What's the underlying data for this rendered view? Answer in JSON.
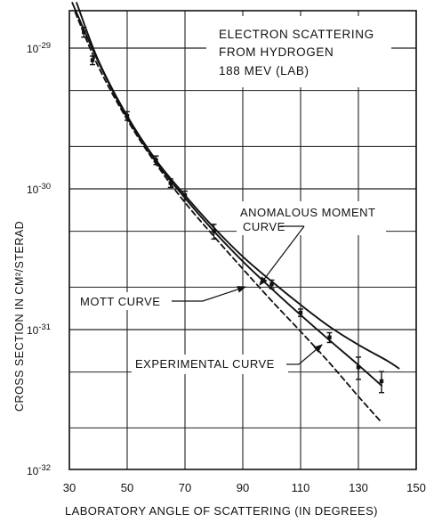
{
  "chart_data": {
    "type": "line",
    "title_lines": [
      "ELECTRON SCATTERING",
      "FROM HYDROGEN",
      "188 MEV (LAB)"
    ],
    "xlabel": "LABORATORY ANGLE OF SCATTERING (IN DEGREES)",
    "ylabel": "CROSS SECTION IN CM²/STERAD",
    "xlim": [
      30,
      150
    ],
    "x_ticks": [
      30,
      50,
      70,
      90,
      110,
      130,
      150
    ],
    "y_log_scale": true,
    "ylim": [
      1e-32,
      2.1e-29
    ],
    "y_ticks": [
      {
        "value": 1e-29,
        "base": "10",
        "exp": "-29"
      },
      {
        "value": 1e-30,
        "base": "10",
        "exp": "-30"
      },
      {
        "value": 1e-31,
        "base": "10",
        "exp": "-31"
      },
      {
        "value": 1e-32,
        "base": "10",
        "exp": "-32"
      }
    ],
    "grid": true,
    "series": [
      {
        "label": "MOTT CURVE",
        "style": "dashed",
        "x": [
          32,
          40,
          50,
          60,
          70,
          80,
          90,
          100,
          110,
          120,
          130,
          137.5
        ],
        "y": [
          1.8e-29,
          7.4e-30,
          3.1e-30,
          1.5e-30,
          8e-31,
          4.6e-31,
          2.7e-31,
          1.6e-31,
          9.7e-32,
          5.8e-32,
          3.35e-32,
          2.25e-32
        ]
      },
      {
        "label": "ANOMALOUS MOMENT CURVE",
        "style": "solid",
        "x": [
          32.5,
          40,
          50,
          60,
          70,
          80,
          90,
          100,
          110,
          120,
          130,
          140,
          144
        ],
        "y": [
          2.1e-29,
          8.2e-30,
          3.3e-30,
          1.6e-30,
          9e-31,
          5.3e-31,
          3.3e-31,
          2.2e-31,
          1.5e-31,
          1.05e-31,
          7.8e-32,
          6e-32,
          5.3e-32
        ]
      },
      {
        "label": "EXPERIMENTAL CURVE",
        "style": "solid",
        "x": [
          31,
          40,
          50,
          60,
          70,
          80,
          90,
          100,
          110,
          120,
          130,
          138
        ],
        "y": [
          2.1e-29,
          8e-30,
          3.2e-30,
          1.55e-30,
          8.6e-31,
          5e-31,
          3.05e-31,
          1.95e-31,
          1.27e-31,
          8.4e-32,
          5.6e-32,
          4e-32
        ]
      }
    ],
    "data_points": {
      "x": [
        35,
        38,
        50,
        60,
        65,
        70,
        80,
        100,
        110,
        120,
        130,
        138
      ],
      "y": [
        1.3e-29,
        8.2e-30,
        3.3e-30,
        1.6e-30,
        1.1e-30,
        9e-31,
        5e-31,
        2.1e-31,
        1.32e-31,
        8.8e-32,
        5.4e-32,
        4.3e-32
      ],
      "err_frac": [
        0.08,
        0.07,
        0.07,
        0.07,
        0.07,
        0.07,
        0.12,
        0.07,
        0.06,
        0.08,
        0.18,
        0.17
      ]
    },
    "annotations": [
      {
        "text": "ANOMALOUS MOMENT",
        "target_series": 1
      },
      {
        "text": "CURVE",
        "target_series": 1
      },
      {
        "text": "MOTT CURVE",
        "target_series": 0
      },
      {
        "text": "EXPERIMENTAL CURVE",
        "target_series": 2
      }
    ]
  }
}
